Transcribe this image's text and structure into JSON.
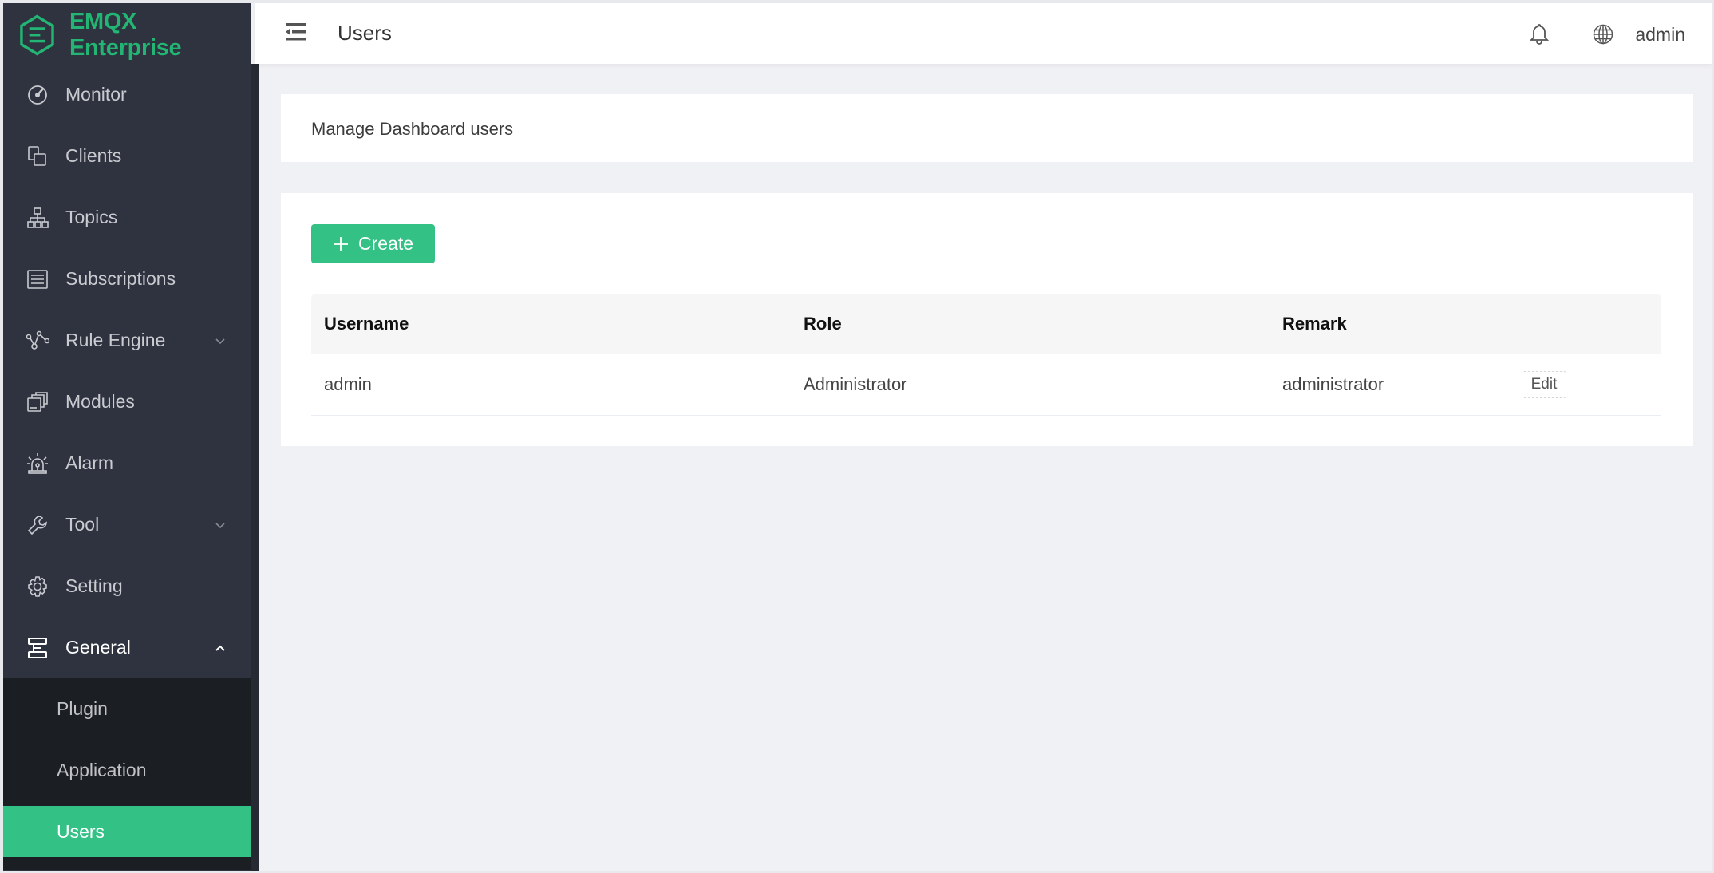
{
  "brand": {
    "name": "EMQX Enterprise",
    "color": "#22b573"
  },
  "sidebar": {
    "items": [
      {
        "label": "Monitor",
        "icon": "gauge-icon"
      },
      {
        "label": "Clients",
        "icon": "devices-icon"
      },
      {
        "label": "Topics",
        "icon": "hierarchy-icon"
      },
      {
        "label": "Subscriptions",
        "icon": "list-icon"
      },
      {
        "label": "Rule Engine",
        "icon": "nodes-icon",
        "expandable": true
      },
      {
        "label": "Modules",
        "icon": "stack-icon"
      },
      {
        "label": "Alarm",
        "icon": "alarm-icon"
      },
      {
        "label": "Tool",
        "icon": "wrench-icon",
        "expandable": true
      },
      {
        "label": "Setting",
        "icon": "gear-icon"
      },
      {
        "label": "General",
        "icon": "server-icon",
        "expanded": true
      }
    ],
    "submenu": [
      {
        "label": "Plugin"
      },
      {
        "label": "Application"
      },
      {
        "label": "Users",
        "active": true
      }
    ]
  },
  "header": {
    "title": "Users",
    "user": "admin"
  },
  "main": {
    "description": "Manage Dashboard users",
    "create_label": "Create",
    "table": {
      "columns": [
        "Username",
        "Role",
        "Remark"
      ],
      "rows": [
        {
          "username": "admin",
          "role": "Administrator",
          "remark": "administrator",
          "action": "Edit"
        }
      ]
    }
  },
  "colors": {
    "accent": "#34c185",
    "sidebar": "#2f333f"
  }
}
